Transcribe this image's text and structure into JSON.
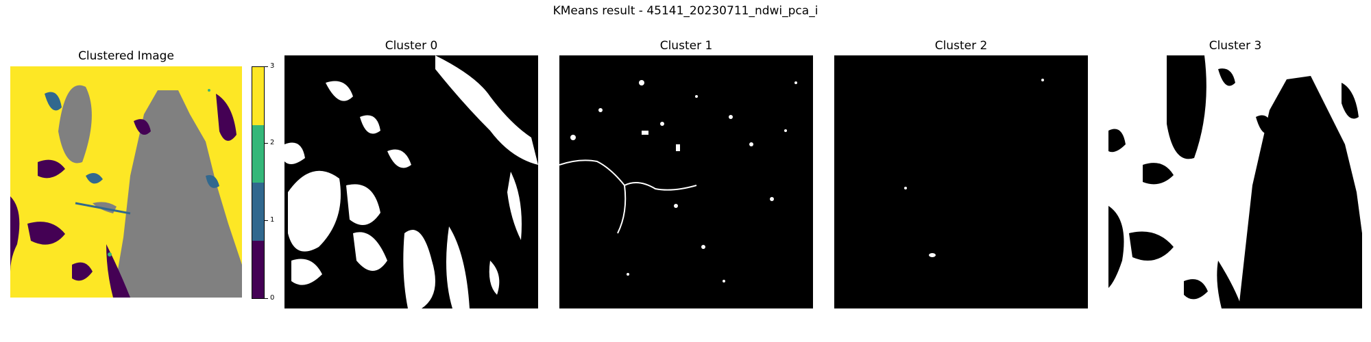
{
  "figure": {
    "suptitle": "KMeans result - 45141_20230711_ndwi_pca_i"
  },
  "panels": {
    "clustered_title": "Clustered Image",
    "cluster_titles": [
      "Cluster 0",
      "Cluster 1",
      "Cluster 2",
      "Cluster 3"
    ]
  },
  "colorbar": {
    "ticks": [
      "0",
      "1",
      "2",
      "3"
    ],
    "colors": [
      "#440154",
      "#31688e",
      "#35b779",
      "#fde725"
    ]
  },
  "colors": {
    "nodata_gray": "#808080",
    "mask_on": "#ffffff",
    "mask_off": "#000000"
  },
  "chart_data": [
    {
      "type": "heatmap",
      "title": "Clustered Image",
      "categories": [
        "0",
        "1",
        "2",
        "3"
      ],
      "colormap": "viridis",
      "colorbar_ticks": [
        0,
        1,
        2,
        3
      ],
      "legend": "right"
    },
    {
      "type": "heatmap",
      "title": "Cluster 0",
      "categories": [
        "0",
        "1"
      ]
    },
    {
      "type": "heatmap",
      "title": "Cluster 1",
      "categories": [
        "0",
        "1"
      ]
    },
    {
      "type": "heatmap",
      "title": "Cluster 2",
      "categories": [
        "0",
        "1"
      ]
    },
    {
      "type": "heatmap",
      "title": "Cluster 3",
      "categories": [
        "0",
        "1"
      ]
    }
  ]
}
